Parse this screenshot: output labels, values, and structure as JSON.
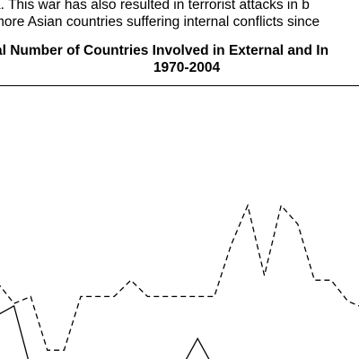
{
  "text": {
    "line1": "a. This war has also resulted in terrorist attacks in b",
    "line2": "more Asian countries suffering internal conflicts since"
  },
  "chart_data": {
    "type": "line",
    "title_line1": "al Number of Countries Involved in External and In",
    "title_line2": "1970-2004",
    "series": [
      {
        "style": "dashed",
        "color": "#000000",
        "x": [
          0,
          1,
          2,
          3,
          4,
          5,
          6,
          7,
          8,
          9,
          10,
          11,
          12,
          13,
          14,
          15,
          16,
          17,
          18,
          19,
          20,
          21,
          22
        ],
        "values": [
          10.2,
          9.3,
          9.6,
          7.3,
          7.3,
          9.6,
          9.6,
          9.6,
          10.3,
          9.6,
          9.6,
          9.6,
          9.6,
          9.6,
          11.8,
          13.5,
          10.5,
          13.5,
          12.7,
          10.3,
          10.3,
          9.4,
          9.1
        ]
      },
      {
        "style": "solid",
        "color": "#000000",
        "x": [
          0,
          1,
          2,
          11,
          12,
          13
        ],
        "values": [
          8.8,
          9.2,
          6.5,
          6.5,
          7.8,
          6.5
        ]
      }
    ]
  }
}
